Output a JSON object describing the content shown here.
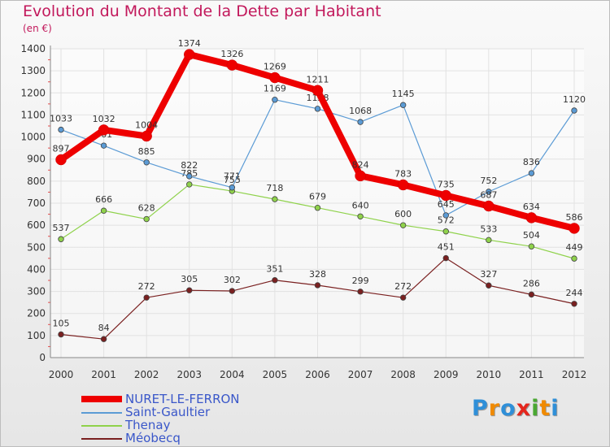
{
  "title": "Evolution du Montant de la Dette par Habitant",
  "subtitle": "(en €)",
  "logo": {
    "text": "Proxiti",
    "letter_colors": [
      "#2f8fd8",
      "#f08a00",
      "#2f8fd8",
      "#e5261d",
      "#4aa832",
      "#f08a00",
      "#2f8fd8"
    ]
  },
  "colors": {
    "title": "#c2185b",
    "axis_text": "#333333",
    "legend_text": "#3a57c9"
  },
  "chart_data": {
    "type": "line",
    "title": "Evolution du Montant de la Dette par Habitant",
    "subtitle": "(en €)",
    "x": [
      "2000",
      "2001",
      "2002",
      "2003",
      "2004",
      "2005",
      "2006",
      "2007",
      "2008",
      "2009",
      "2010",
      "2011",
      "2012"
    ],
    "ylim": [
      0,
      1400
    ],
    "yticks": [
      0,
      100,
      200,
      300,
      400,
      500,
      600,
      700,
      800,
      900,
      1000,
      1100,
      1200,
      1300,
      1400
    ],
    "grid": true,
    "legend_position": "bottom-left",
    "series": [
      {
        "name": "NURET-LE-FERRON",
        "color": "#ee0000",
        "values": [
          897,
          1032,
          1004,
          1374,
          1326,
          1269,
          1211,
          824,
          783,
          735,
          687,
          634,
          586
        ],
        "labels": [
          "897",
          "1032",
          "1004",
          "1374",
          "1326",
          "1269",
          "1211",
          "824",
          "783",
          "735",
          "687",
          "634",
          "586"
        ]
      },
      {
        "name": "Saint-Gaultier",
        "color": "#5b9bd5",
        "values": [
          1033,
          961,
          885,
          822,
          771,
          1169,
          1128,
          1068,
          1145,
          645,
          752,
          836,
          1120
        ],
        "labels": [
          "1033",
          "961",
          "885",
          "822",
          "771",
          "1169",
          "1128",
          "1068",
          "1145",
          "645",
          "752",
          "836",
          "1120"
        ]
      },
      {
        "name": "Thenay",
        "color": "#8fd24b",
        "values": [
          537,
          666,
          628,
          785,
          755,
          718,
          679,
          640,
          600,
          572,
          533,
          504,
          449
        ],
        "labels": [
          "537",
          "666",
          "628",
          "785",
          "755",
          "718",
          "679",
          "640",
          "600",
          "572",
          "533",
          "504",
          "449"
        ]
      },
      {
        "name": "Méobecq",
        "color": "#7a2020",
        "values": [
          105,
          84,
          272,
          305,
          302,
          351,
          328,
          299,
          272,
          451,
          327,
          286,
          244
        ],
        "labels": [
          "105",
          "84",
          "272",
          "305",
          "302",
          "351",
          "328",
          "299",
          "272",
          "451",
          "327",
          "286",
          "244"
        ]
      }
    ]
  }
}
